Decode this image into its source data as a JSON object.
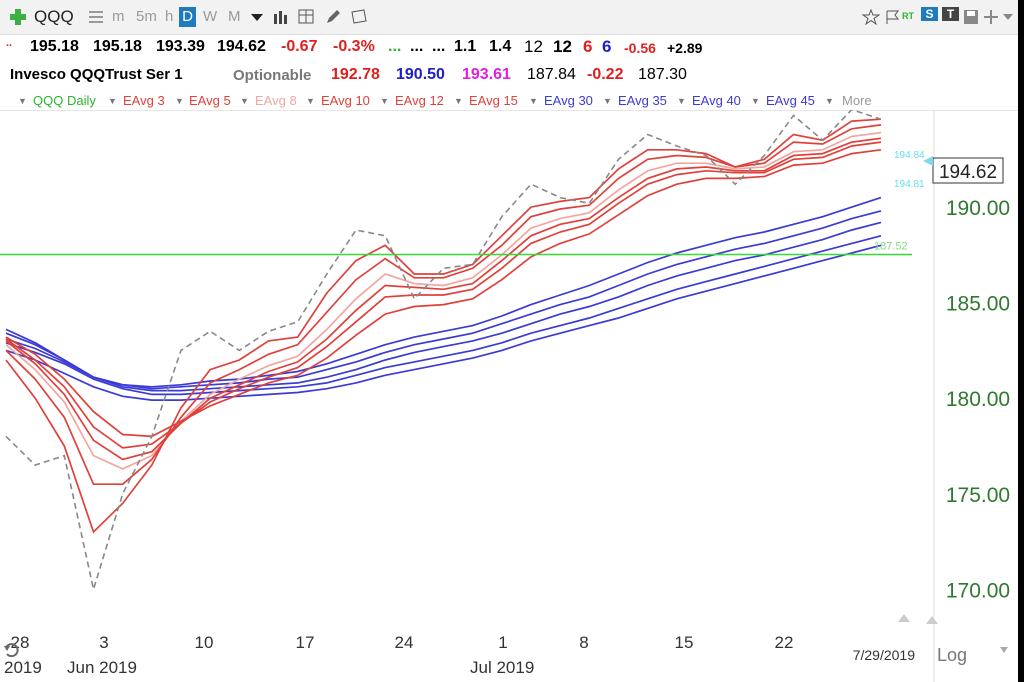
{
  "toolbar": {
    "symbol": "QQQ",
    "periods": [
      "m",
      "5m",
      "h",
      "D",
      "W",
      "M"
    ],
    "active_period": "D",
    "right_badges": [
      "RT",
      "S",
      "T"
    ]
  },
  "quote_row1": {
    "lead": "..",
    "open": "195.18",
    "high": "195.18",
    "low": "193.39",
    "close": "194.62",
    "change": "-0.67",
    "change_pct": "-0.3%",
    "dots_green": "...",
    "dots": "...",
    "v1": "1.1",
    "v2": "1.4",
    "v3": "12",
    "v4": "12",
    "v5": "6",
    "v6": "6",
    "v7": "-0.56",
    "v8": "+2.89"
  },
  "quote_row2": {
    "name": "Invesco QQQTrust Ser 1",
    "optionable": "Optionable",
    "p1": "192.78",
    "p2": "190.50",
    "p3": "193.61",
    "p4": "187.84",
    "p5": "-0.22",
    "p6": "187.30"
  },
  "legend": {
    "items": [
      "QQQ Daily",
      "EAvg 3",
      "EAvg 5",
      "EAvg 8",
      "EAvg 10",
      "EAvg 12",
      "EAvg 15",
      "EAvg 30",
      "EAvg 35",
      "EAvg 40",
      "EAvg 45"
    ],
    "more": "More"
  },
  "colors": {
    "short_ema": "#e0403a",
    "light_ema": "#f2a6a0",
    "long_ema": "#3a3ad6",
    "price_line": "#888888",
    "hline": "#33dd33",
    "axis_text": "#2f7a2f"
  },
  "chart_data": {
    "type": "line",
    "y_ticks": [
      "170.00",
      "175.00",
      "180.00",
      "185.00",
      "190.00"
    ],
    "ylim": [
      168.5,
      195.5
    ],
    "x_ticks": [
      "28",
      "3",
      "10",
      "17",
      "24",
      "1",
      "8",
      "15",
      "22"
    ],
    "x_month_labels": [
      "2019",
      "Jun 2019",
      "Jul 2019"
    ],
    "date_label": "7/29/2019",
    "scale_label": "Log",
    "last_price_label": "194.62",
    "tag_upper": "194.84",
    "tag_lower": "194.81",
    "hline_value": 187.52,
    "hline_label": "187.52",
    "series": [
      {
        "role": "price",
        "values": [
          178.0,
          176.5,
          177.0,
          170.0,
          175.0,
          178.0,
          182.5,
          183.5,
          182.5,
          183.5,
          184.0,
          186.5,
          188.8,
          188.5,
          185.2,
          186.8,
          187.0,
          189.5,
          191.2,
          190.5,
          190.2,
          192.5,
          193.8,
          193.2,
          192.7,
          191.2,
          192.7,
          194.8,
          193.5,
          195.1,
          194.6
        ]
      },
      {
        "role": "short",
        "values": [
          182.0,
          180.0,
          177.5,
          173.0,
          174.5,
          176.5,
          179.5,
          181.5,
          182.0,
          183.0,
          183.2,
          185.5,
          187.2,
          188.0,
          186.5,
          186.5,
          187.0,
          188.5,
          190.0,
          190.3,
          190.5,
          192.0,
          193.0,
          193.0,
          192.8,
          192.1,
          192.5,
          193.8,
          193.5,
          194.5,
          194.6
        ]
      },
      {
        "role": "short",
        "values": [
          182.5,
          181.0,
          179.0,
          175.5,
          175.5,
          176.8,
          179.0,
          180.8,
          181.5,
          182.3,
          182.8,
          184.5,
          186.2,
          187.3,
          186.3,
          186.3,
          186.8,
          188.0,
          189.5,
          189.9,
          190.1,
          191.5,
          192.5,
          192.7,
          192.6,
          192.1,
          192.3,
          193.4,
          193.3,
          194.1,
          194.3
        ]
      },
      {
        "role": "light",
        "values": [
          182.8,
          181.5,
          179.8,
          177.0,
          176.3,
          177.0,
          178.8,
          180.2,
          181.0,
          181.7,
          182.2,
          183.6,
          185.2,
          186.5,
          186.0,
          185.9,
          186.3,
          187.5,
          188.9,
          189.4,
          189.7,
          190.9,
          191.9,
          192.3,
          192.3,
          192.0,
          192.1,
          192.9,
          193.0,
          193.7,
          193.9
        ]
      },
      {
        "role": "short",
        "values": [
          183.0,
          181.8,
          180.2,
          177.8,
          176.8,
          177.2,
          178.7,
          180.0,
          180.7,
          181.4,
          181.9,
          183.1,
          184.6,
          185.9,
          185.8,
          185.7,
          186.0,
          187.2,
          188.5,
          189.1,
          189.4,
          190.5,
          191.5,
          192.0,
          192.1,
          191.9,
          191.9,
          192.7,
          192.8,
          193.4,
          193.6
        ]
      },
      {
        "role": "short",
        "values": [
          183.1,
          182.0,
          180.6,
          178.5,
          177.4,
          177.6,
          178.7,
          179.8,
          180.5,
          181.1,
          181.6,
          182.7,
          184.0,
          185.3,
          185.4,
          185.4,
          185.7,
          186.8,
          188.1,
          188.7,
          189.1,
          190.2,
          191.2,
          191.7,
          191.9,
          191.8,
          191.8,
          192.5,
          192.6,
          193.2,
          193.4
        ]
      },
      {
        "role": "short",
        "values": [
          183.2,
          182.3,
          181.0,
          179.3,
          178.1,
          178.0,
          178.8,
          179.6,
          180.2,
          180.8,
          181.2,
          182.1,
          183.3,
          184.4,
          184.8,
          184.9,
          185.2,
          186.2,
          187.4,
          188.1,
          188.6,
          189.6,
          190.6,
          191.2,
          191.5,
          191.5,
          191.6,
          192.2,
          192.3,
          192.8,
          193.0
        ]
      },
      {
        "role": "long",
        "values": [
          183.6,
          182.9,
          182.0,
          181.1,
          180.7,
          180.6,
          180.7,
          180.9,
          181.0,
          181.2,
          181.4,
          181.8,
          182.3,
          182.8,
          183.2,
          183.5,
          183.8,
          184.3,
          184.9,
          185.4,
          185.9,
          186.5,
          187.1,
          187.6,
          188.0,
          188.4,
          188.7,
          189.1,
          189.5,
          190.0,
          190.5
        ]
      },
      {
        "role": "long",
        "values": [
          183.4,
          182.8,
          182.0,
          181.1,
          180.7,
          180.5,
          180.6,
          180.7,
          180.8,
          181.0,
          181.1,
          181.5,
          181.9,
          182.4,
          182.8,
          183.1,
          183.4,
          183.9,
          184.4,
          184.9,
          185.3,
          185.9,
          186.5,
          187.0,
          187.4,
          187.8,
          188.1,
          188.5,
          188.9,
          189.4,
          189.8
        ]
      },
      {
        "role": "long",
        "values": [
          183.1,
          182.6,
          181.9,
          181.1,
          180.6,
          180.4,
          180.4,
          180.5,
          180.6,
          180.7,
          180.8,
          181.1,
          181.5,
          182.0,
          182.4,
          182.7,
          183.0,
          183.4,
          183.9,
          184.4,
          184.8,
          185.3,
          185.9,
          186.4,
          186.8,
          187.2,
          187.5,
          187.9,
          188.3,
          188.8,
          189.2
        ]
      },
      {
        "role": "long",
        "values": [
          182.9,
          182.4,
          181.8,
          181.0,
          180.5,
          180.2,
          180.2,
          180.3,
          180.4,
          180.5,
          180.6,
          180.8,
          181.2,
          181.6,
          181.9,
          182.2,
          182.5,
          182.9,
          183.4,
          183.8,
          184.2,
          184.7,
          185.2,
          185.7,
          186.1,
          186.5,
          186.9,
          187.3,
          187.7,
          188.1,
          188.5
        ]
      },
      {
        "role": "long",
        "values": [
          182.5,
          182.0,
          181.3,
          180.6,
          180.1,
          179.9,
          179.9,
          180.0,
          180.1,
          180.2,
          180.3,
          180.5,
          180.8,
          181.2,
          181.5,
          181.8,
          182.1,
          182.5,
          183.0,
          183.4,
          183.8,
          184.2,
          184.7,
          185.2,
          185.6,
          186.0,
          186.4,
          186.8,
          187.2,
          187.6,
          188.0
        ]
      }
    ]
  }
}
